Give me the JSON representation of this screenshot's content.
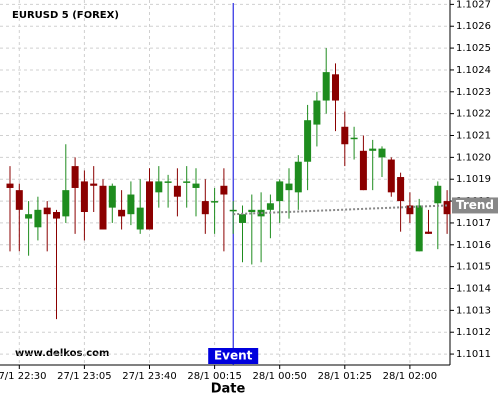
{
  "chart_data": {
    "type": "candlestick",
    "title": "EURUSD 5 (FOREX)",
    "x_label": "Date",
    "watermark": "www.delkos.com",
    "categories": [
      null,
      "27/1 22:30",
      null,
      null,
      null,
      null,
      null,
      null,
      "27/1 23:05",
      null,
      null,
      null,
      null,
      null,
      null,
      "27/1 23:40",
      null,
      null,
      null,
      null,
      null,
      null,
      "28/1 00:15",
      null,
      null,
      null,
      null,
      null,
      null,
      "28/1 00:50",
      null,
      null,
      null,
      null,
      null,
      null,
      "28/1 01:25",
      null,
      null,
      null,
      null,
      null,
      null,
      "28/1 02:00",
      null,
      null,
      null,
      null
    ],
    "open": [
      1.10188,
      1.10185,
      1.10172,
      1.10168,
      1.10177,
      1.10175,
      1.10173,
      1.10196,
      1.10189,
      1.10188,
      1.10187,
      1.10177,
      1.10176,
      1.10174,
      1.10167,
      1.10189,
      1.10184,
      1.10189,
      1.10187,
      1.10189,
      1.10186,
      1.1018,
      1.1018,
      1.10187,
      1.10176,
      1.1017,
      1.10175,
      1.10173,
      1.10176,
      1.1018,
      1.10185,
      1.10184,
      1.10198,
      1.10215,
      1.10226,
      1.10238,
      1.10214,
      1.10209,
      1.10203,
      1.10203,
      1.102,
      1.10199,
      1.10191,
      1.10178,
      1.10157,
      1.10166,
      1.10179,
      1.1018
    ],
    "high": [
      1.10196,
      1.10188,
      1.1018,
      1.10182,
      1.1018,
      1.10176,
      1.10206,
      1.102,
      1.10194,
      1.10196,
      1.1019,
      1.10188,
      1.10185,
      1.10189,
      1.1019,
      1.10195,
      1.10196,
      1.10192,
      1.10195,
      1.10196,
      1.10195,
      1.1019,
      1.10186,
      1.10195,
      1.1018,
      1.10178,
      1.10183,
      1.10184,
      1.10183,
      1.1019,
      1.10195,
      1.10201,
      1.10224,
      1.1023,
      1.1025,
      1.10243,
      1.10221,
      1.10214,
      1.1021,
      1.10208,
      1.10205,
      1.102,
      1.10193,
      1.10184,
      1.10181,
      1.10176,
      1.10189,
      1.10185
    ],
    "low": [
      1.10157,
      1.10157,
      1.10155,
      1.10162,
      1.10157,
      1.10126,
      1.1017,
      1.10165,
      1.10162,
      1.10175,
      1.10167,
      1.1017,
      1.10167,
      1.10169,
      1.10165,
      1.10167,
      1.10177,
      1.10177,
      1.10173,
      1.10177,
      1.10173,
      1.10165,
      1.10165,
      1.10157,
      1.10165,
      1.10152,
      1.10151,
      1.10152,
      1.10163,
      1.1017,
      1.10172,
      1.10176,
      1.10185,
      1.10205,
      1.1022,
      1.10212,
      1.10196,
      1.10199,
      1.10185,
      1.10185,
      1.10191,
      1.10182,
      1.10166,
      1.1017,
      1.10157,
      1.10165,
      1.10158,
      1.10165
    ],
    "close": [
      1.10186,
      1.10176,
      1.10174,
      1.10176,
      1.10174,
      1.10172,
      1.10185,
      1.10186,
      1.10175,
      1.10187,
      1.10167,
      1.10187,
      1.10173,
      1.10183,
      1.10177,
      1.10167,
      1.10189,
      1.10189,
      1.10182,
      1.10189,
      1.10188,
      1.10174,
      1.1018,
      1.10183,
      1.10176,
      1.10174,
      1.10176,
      1.10176,
      1.10179,
      1.10189,
      1.10188,
      1.10198,
      1.10217,
      1.10226,
      1.10239,
      1.10226,
      1.10206,
      1.10209,
      1.10185,
      1.10204,
      1.10204,
      1.10184,
      1.1018,
      1.10174,
      1.10178,
      1.10165,
      1.10187,
      1.10174
    ],
    "up_color": "#1e8c1e",
    "down_color": "#8b0000",
    "ylim": [
      1.10105,
      1.10272
    ],
    "yticks": [
      1.1011,
      1.1012,
      1.1013,
      1.1014,
      1.1015,
      1.1016,
      1.1017,
      1.1018,
      1.1019,
      {
        "value": 1.102,
        "label": "1.1020"
      },
      1.1021,
      1.1022,
      1.1023,
      1.1024,
      1.1025,
      1.1026,
      1.1027
    ],
    "grid": true,
    "event": {
      "label": "Event",
      "index": 24,
      "color": "#0000dd"
    },
    "trend": {
      "label": "Trend",
      "start_index": 24,
      "end_index": 47,
      "start": 1.10174,
      "end": 1.10178,
      "color": "#888888"
    }
  }
}
